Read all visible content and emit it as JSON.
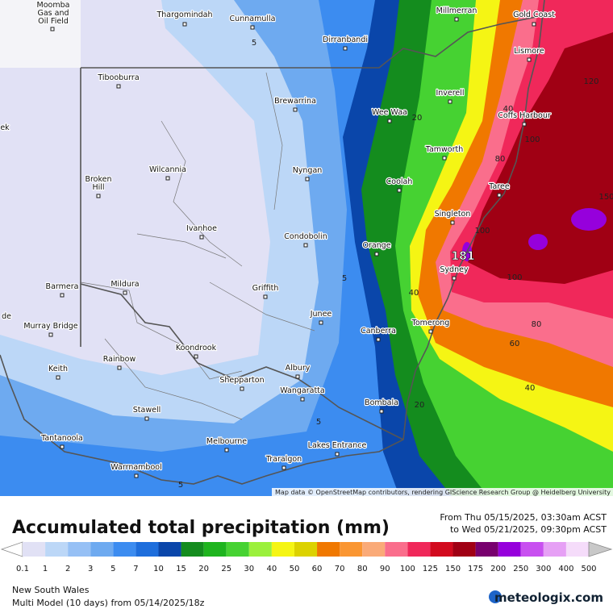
{
  "map": {
    "places": [
      {
        "lines": [
          "Moomba",
          "Gas and",
          "Oil Field"
        ]
      },
      {
        "lines": [
          "Thargomindah"
        ]
      },
      {
        "lines": [
          "Cunnamulla"
        ]
      },
      {
        "lines": [
          "Dirranbandi"
        ]
      },
      {
        "lines": [
          "Millmerran"
        ]
      },
      {
        "lines": [
          "Gold Coast"
        ]
      },
      {
        "lines": [
          "Lismore"
        ]
      },
      {
        "lines": [
          "Tibooburra"
        ]
      },
      {
        "lines": [
          "Brewarrina"
        ]
      },
      {
        "lines": [
          "Inverell"
        ]
      },
      {
        "lines": [
          "Wee Waa"
        ]
      },
      {
        "lines": [
          "Coffs Harbour"
        ]
      },
      {
        "lines": [
          "Tamworth"
        ]
      },
      {
        "lines": [
          "Wilcannia"
        ]
      },
      {
        "lines": [
          "Nyngan"
        ]
      },
      {
        "lines": [
          "Broken",
          "Hill"
        ]
      },
      {
        "lines": [
          "Coolah"
        ]
      },
      {
        "lines": [
          "Taree"
        ]
      },
      {
        "lines": [
          "Singleton"
        ]
      },
      {
        "lines": [
          "Ivanhoe"
        ]
      },
      {
        "lines": [
          "Condobolin"
        ]
      },
      {
        "lines": [
          "Orange"
        ]
      },
      {
        "lines": [
          "Sydney"
        ]
      },
      {
        "lines": [
          "Barmera"
        ]
      },
      {
        "lines": [
          "Mildura"
        ]
      },
      {
        "lines": [
          "Griffith"
        ]
      },
      {
        "lines": [
          "Junee"
        ]
      },
      {
        "lines": [
          "Murray Bridge"
        ]
      },
      {
        "lines": [
          "Canberra"
        ]
      },
      {
        "lines": [
          "Tomerong"
        ]
      },
      {
        "lines": [
          "Koondrook"
        ]
      },
      {
        "lines": [
          "Rainbow"
        ]
      },
      {
        "lines": [
          "Keith"
        ]
      },
      {
        "lines": [
          "Albury"
        ]
      },
      {
        "lines": [
          "Shepparton"
        ]
      },
      {
        "lines": [
          "Wangaratta"
        ]
      },
      {
        "lines": [
          "Bombala"
        ]
      },
      {
        "lines": [
          "Stawell"
        ]
      },
      {
        "lines": [
          "Tantanoola"
        ]
      },
      {
        "lines": [
          "Melbourne"
        ]
      },
      {
        "lines": [
          "Lakes Entrance"
        ]
      },
      {
        "lines": [
          "Warrnambool"
        ]
      },
      {
        "lines": [
          "Traralgon"
        ]
      },
      {
        "lines": [
          "ek"
        ]
      },
      {
        "lines": [
          "de"
        ]
      }
    ],
    "contour_labels": [
      "5",
      "5",
      "5",
      "5",
      "20",
      "20",
      "40",
      "40",
      "40",
      "60",
      "80",
      "80",
      "100",
      "100",
      "100",
      "120",
      "150"
    ],
    "max_label": "181",
    "attribution": "Map data © OpenStreetMap contributors, rendering GIScience Research Group @ Heidelberg University"
  },
  "footer": {
    "title": "Accumulated total precipitation (mm)",
    "period": [
      "From Thu 05/15/2025, 03:30am ACST",
      "to Wed 05/21/2025, 09:30pm ACST"
    ],
    "region": "New South Wales",
    "model": "Multi Model (10 days) from 05/14/2025/18z",
    "brand": "meteologix.com"
  },
  "legend": {
    "levels": [
      0.1,
      1,
      2,
      3,
      5,
      7,
      10,
      15,
      20,
      25,
      30,
      40,
      50,
      60,
      70,
      80,
      90,
      100,
      125,
      150,
      175,
      200,
      250,
      300,
      400,
      500
    ],
    "colors": [
      "#ffffff",
      "#e1e1f5",
      "#bcd7f7",
      "#96c0f5",
      "#6eaaf0",
      "#3c8cf0",
      "#1e6edc",
      "#0a46aa",
      "#148c1e",
      "#1eb41e",
      "#46d232",
      "#9bf03c",
      "#f5f514",
      "#dcd200",
      "#f07800",
      "#fa9632",
      "#faaa78",
      "#fa6e8c",
      "#f0285a",
      "#d20a1e",
      "#a00014",
      "#78006e",
      "#9600dc",
      "#c850f0",
      "#e6a0f5",
      "#f5dcfa",
      "#c8c8c8"
    ]
  }
}
